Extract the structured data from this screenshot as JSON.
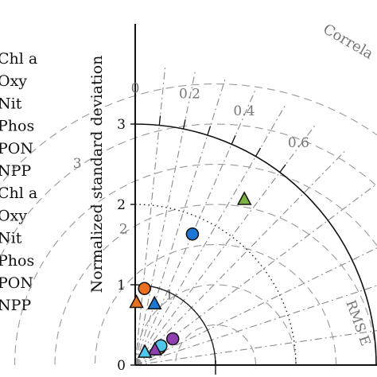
{
  "chart_data": {
    "type": "scatter",
    "subtype": "taylor-diagram",
    "ylabel": "Normalized standard deviation",
    "correlation_label": "Correla",
    "rmse_label": "RMS E",
    "std_ticks": [
      {
        "label": "0",
        "value": 0
      },
      {
        "label": "1",
        "value": 1
      },
      {
        "label": "2",
        "value": 2
      },
      {
        "label": "3",
        "value": 3
      }
    ],
    "correlation_ticks": [
      {
        "label": "0",
        "value": 0
      },
      {
        "label": "0.2",
        "value": 0.2
      },
      {
        "label": "0.4",
        "value": 0.4
      },
      {
        "label": "0.6",
        "value": 0.6
      }
    ],
    "rmse_contours": [
      {
        "label": "1",
        "value": 1
      },
      {
        "label": "2",
        "value": 2
      },
      {
        "label": "3",
        "value": 3
      }
    ],
    "reference_std": 1,
    "std_arcs": [
      1,
      2,
      3
    ],
    "legend_labels": [
      "Chl a",
      "Oxy",
      "Nit",
      "Phos",
      "PON",
      "NPP",
      "Chl a",
      "Oxy",
      "Nit",
      "Phos",
      "PON",
      "NPP"
    ],
    "points": [
      {
        "marker": "circle",
        "color": "#e8711f",
        "std": 0.96,
        "corr": 0.12
      },
      {
        "marker": "circle",
        "color": "#1f77d4",
        "std": 1.78,
        "corr": 0.4
      },
      {
        "marker": "circle",
        "color": "#8e3fb0",
        "std": 0.57,
        "corr": 0.82
      },
      {
        "marker": "circle",
        "color": "#f2a33a",
        "std": 0.37,
        "corr": 0.82
      },
      {
        "marker": "circle",
        "color": "#4fc7ec",
        "std": 0.4,
        "corr": 0.8
      },
      {
        "marker": "triangle",
        "color": "#e8711f",
        "std": 0.78,
        "corr": 0.02
      },
      {
        "marker": "triangle",
        "color": "#1f77d4",
        "std": 0.8,
        "corr": 0.3
      },
      {
        "marker": "triangle",
        "color": "#7ab33f",
        "std": 2.47,
        "corr": 0.55
      },
      {
        "marker": "triangle",
        "color": "#8e3fb0",
        "std": 0.31,
        "corr": 0.79
      },
      {
        "marker": "triangle",
        "color": "#4fc7ec",
        "std": 0.2,
        "corr": 0.6
      }
    ],
    "grid": true
  }
}
